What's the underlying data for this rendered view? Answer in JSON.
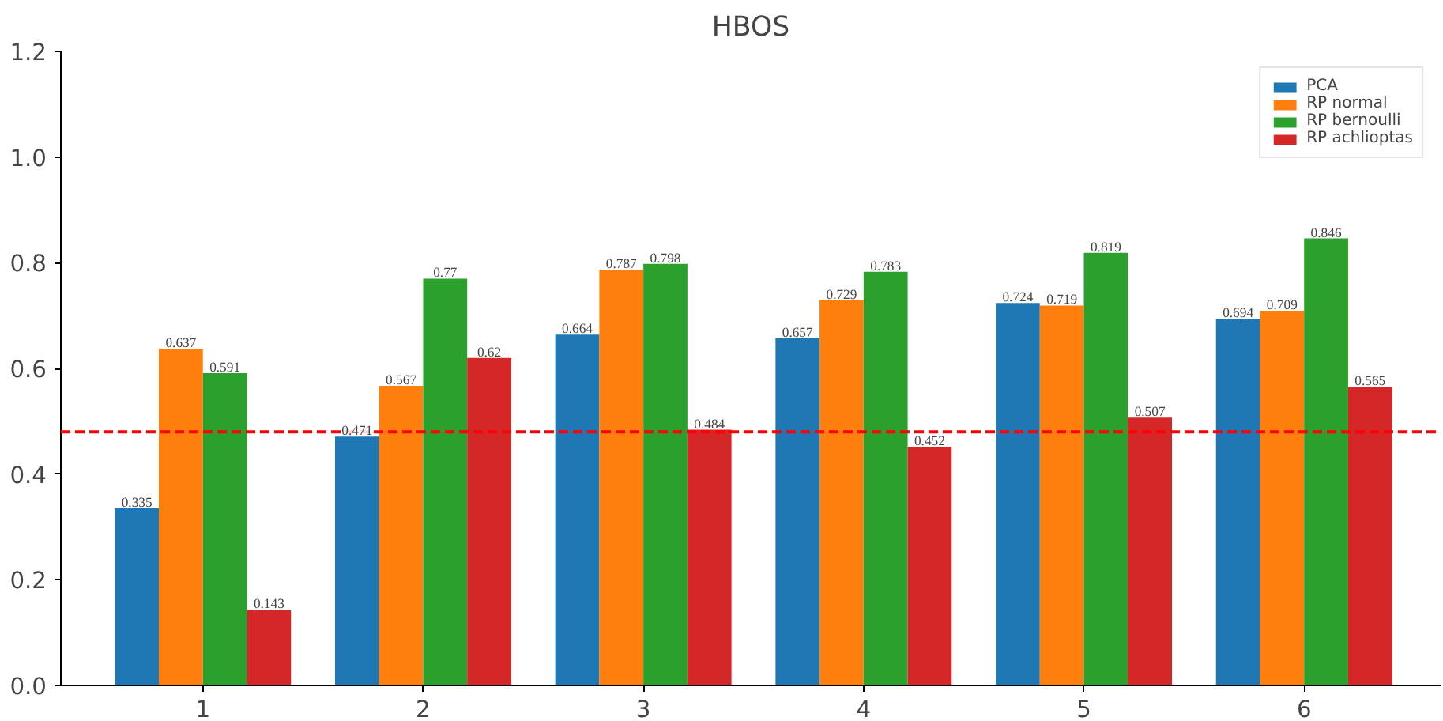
{
  "chart_data": {
    "type": "bar",
    "title": "HBOS",
    "categories": [
      "1",
      "2",
      "3",
      "4",
      "5",
      "6"
    ],
    "series": [
      {
        "name": "PCA",
        "color": "#1f77b4",
        "values": [
          0.335,
          0.471,
          0.664,
          0.657,
          0.724,
          0.694
        ]
      },
      {
        "name": "RP normal",
        "color": "#ff7f0e",
        "values": [
          0.637,
          0.567,
          0.787,
          0.729,
          0.719,
          0.709
        ]
      },
      {
        "name": "RP bernoulli",
        "color": "#2ca02c",
        "values": [
          0.591,
          0.77,
          0.798,
          0.783,
          0.819,
          0.846
        ]
      },
      {
        "name": "RP achlioptas",
        "color": "#d62728",
        "values": [
          0.143,
          0.62,
          0.484,
          0.452,
          0.507,
          0.565
        ]
      }
    ],
    "ylim": [
      0,
      1.2
    ],
    "yticks": [
      {
        "value": 0,
        "label": "0.0"
      },
      0.2,
      0.4,
      0.6,
      0.8,
      {
        "value": 1,
        "label": "1.0"
      },
      1.2
    ],
    "ref_lines": [
      {
        "axis": "y",
        "value": 0.48,
        "color": "#ff0000",
        "line_style": "dashed"
      }
    ],
    "data_labels": true,
    "legend": "top right",
    "grid": false
  }
}
